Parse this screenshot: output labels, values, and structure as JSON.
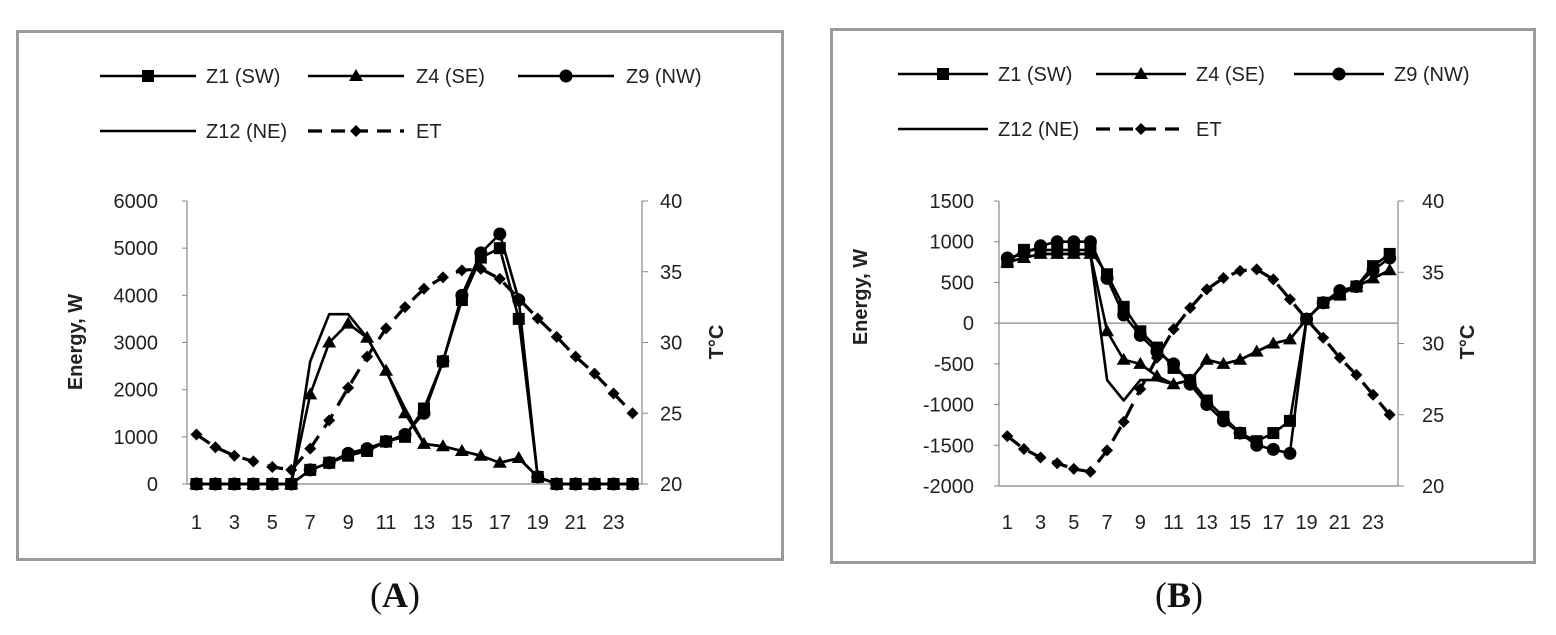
{
  "panels": [
    {
      "id": "A",
      "label_text": "A",
      "chart_data": {
        "type": "line",
        "title": "",
        "xlabel": "",
        "ylabel": "Energy, W",
        "y2label": "T°C",
        "x": [
          1,
          2,
          3,
          4,
          5,
          6,
          7,
          8,
          9,
          10,
          11,
          12,
          13,
          14,
          15,
          16,
          17,
          18,
          19,
          20,
          21,
          22,
          23,
          24
        ],
        "xticks": [
          1,
          3,
          5,
          7,
          9,
          11,
          13,
          15,
          17,
          19,
          21,
          23
        ],
        "ylim": [
          0,
          6000
        ],
        "yticks": [
          0,
          1000,
          2000,
          3000,
          4000,
          5000,
          6000
        ],
        "y2lim": [
          20,
          40
        ],
        "y2ticks": [
          20,
          25,
          30,
          35,
          40
        ],
        "zero_line": false,
        "legend_position": "top",
        "series": [
          {
            "name": "Z1 (SW)",
            "marker": "square",
            "dash": false,
            "axis": "left",
            "values": [
              0,
              0,
              0,
              0,
              0,
              0,
              300,
              450,
              600,
              700,
              900,
              1000,
              1600,
              2600,
              3900,
              4800,
              5000,
              3500,
              150,
              0,
              0,
              0,
              0,
              0
            ]
          },
          {
            "name": "Z4 (SE)",
            "marker": "triangle",
            "dash": false,
            "axis": "left",
            "values": [
              0,
              0,
              0,
              0,
              0,
              0,
              1900,
              3000,
              3400,
              3100,
              2400,
              1500,
              850,
              800,
              700,
              600,
              450,
              550,
              150,
              0,
              0,
              0,
              0,
              0
            ]
          },
          {
            "name": "Z9 (NW)",
            "marker": "circle",
            "dash": false,
            "axis": "left",
            "values": [
              0,
              0,
              0,
              0,
              0,
              0,
              300,
              450,
              650,
              750,
              900,
              1050,
              1500,
              2600,
              4000,
              4900,
              5300,
              3900,
              150,
              0,
              0,
              0,
              0,
              0
            ]
          },
          {
            "name": "Z12 (NE)",
            "marker": "none",
            "dash": false,
            "axis": "left",
            "values": [
              0,
              0,
              0,
              0,
              0,
              0,
              2600,
              3600,
              3600,
              3100,
              2400,
              1600,
              850,
              800,
              700,
              600,
              450,
              550,
              150,
              0,
              0,
              0,
              0,
              0
            ]
          },
          {
            "name": "ET",
            "marker": "diamond",
            "dash": true,
            "axis": "right",
            "values": [
              23.5,
              22.6,
              22.0,
              21.6,
              21.2,
              21.0,
              22.5,
              24.5,
              26.8,
              29.0,
              31.0,
              32.5,
              33.8,
              34.6,
              35.1,
              35.2,
              34.5,
              33.1,
              31.7,
              30.4,
              29.0,
              27.8,
              26.4,
              25.0
            ]
          }
        ]
      }
    },
    {
      "id": "B",
      "label_text": "B",
      "chart_data": {
        "type": "line",
        "title": "",
        "xlabel": "",
        "ylabel": "Energy, W",
        "y2label": "T°C",
        "x": [
          1,
          2,
          3,
          4,
          5,
          6,
          7,
          8,
          9,
          10,
          11,
          12,
          13,
          14,
          15,
          16,
          17,
          18,
          19,
          20,
          21,
          22,
          23,
          24
        ],
        "xticks": [
          1,
          3,
          5,
          7,
          9,
          11,
          13,
          15,
          17,
          19,
          21,
          23
        ],
        "ylim": [
          -2000,
          1500
        ],
        "yticks": [
          -2000,
          -1500,
          -1000,
          -500,
          0,
          500,
          1000,
          1500
        ],
        "y2lim": [
          20,
          40
        ],
        "y2ticks": [
          20,
          25,
          30,
          35,
          40
        ],
        "zero_line": true,
        "legend_position": "top",
        "series": [
          {
            "name": "Z1 (SW)",
            "marker": "square",
            "dash": false,
            "axis": "left",
            "values": [
              750,
              900,
              900,
              900,
              900,
              900,
              600,
              200,
              -100,
              -300,
              -550,
              -700,
              -950,
              -1150,
              -1350,
              -1450,
              -1350,
              -1200,
              50,
              250,
              350,
              450,
              700,
              850
            ]
          },
          {
            "name": "Z4 (SE)",
            "marker": "triangle",
            "dash": false,
            "axis": "left",
            "values": [
              750,
              800,
              850,
              850,
              850,
              850,
              -100,
              -450,
              -500,
              -650,
              -750,
              -700,
              -450,
              -500,
              -450,
              -350,
              -250,
              -200,
              50,
              250,
              350,
              450,
              550,
              650
            ]
          },
          {
            "name": "Z9 (NW)",
            "marker": "circle",
            "dash": false,
            "axis": "left",
            "values": [
              800,
              850,
              950,
              1000,
              1000,
              1000,
              550,
              100,
              -150,
              -350,
              -500,
              -750,
              -1000,
              -1200,
              -1350,
              -1500,
              -1550,
              -1600,
              50,
              250,
              400,
              450,
              650,
              800
            ]
          },
          {
            "name": "Z12 (NE)",
            "marker": "none",
            "dash": false,
            "axis": "left",
            "values": [
              750,
              800,
              850,
              850,
              850,
              850,
              -700,
              -950,
              -700,
              -700,
              -750,
              -700,
              -450,
              -500,
              -450,
              -350,
              -250,
              -200,
              50,
              250,
              350,
              450,
              550,
              650
            ]
          },
          {
            "name": "ET",
            "marker": "diamond",
            "dash": true,
            "axis": "right",
            "values": [
              23.5,
              22.6,
              22.0,
              21.6,
              21.2,
              21.0,
              22.5,
              24.5,
              26.8,
              29.0,
              31.0,
              32.5,
              33.8,
              34.6,
              35.1,
              35.2,
              34.5,
              33.1,
              31.7,
              30.4,
              29.0,
              27.8,
              26.4,
              25.0
            ]
          }
        ]
      }
    }
  ]
}
